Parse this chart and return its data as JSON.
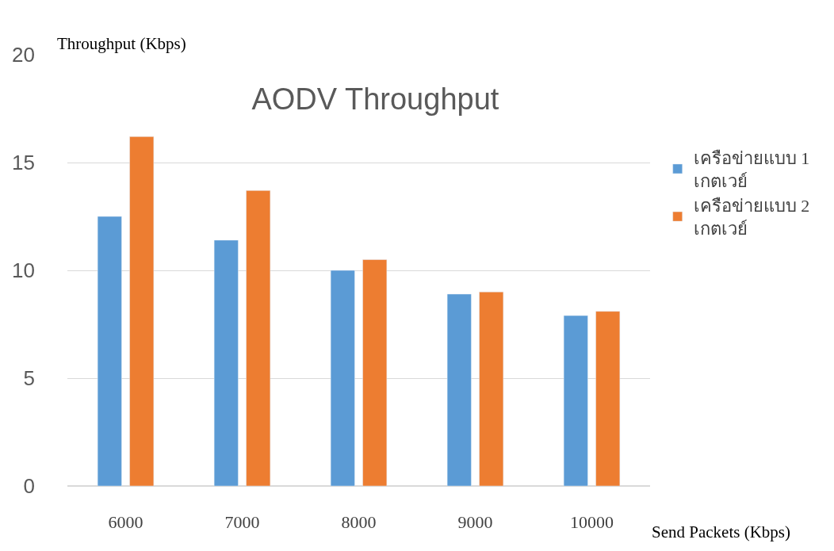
{
  "chart_data": {
    "type": "bar",
    "title": "AODV Throughput",
    "xlabel": "Send Packets (Kbps)",
    "ylabel": "Throughput (Kbps)",
    "categories": [
      "6000",
      "7000",
      "8000",
      "9000",
      "10000"
    ],
    "series": [
      {
        "name": "เครือข่ายแบบ 1 เกตเวย์",
        "color": "#5b9bd5",
        "values": [
          12.5,
          11.4,
          10.0,
          8.9,
          7.9
        ]
      },
      {
        "name": "เครือข่ายแบบ 2 เกตเวย์",
        "color": "#ed7d31",
        "values": [
          16.2,
          13.7,
          10.5,
          9.0,
          8.1
        ]
      }
    ],
    "ylim": [
      0,
      20
    ],
    "yticks": [
      0,
      5,
      10,
      15,
      20
    ],
    "grid": "y",
    "legend": "right"
  }
}
